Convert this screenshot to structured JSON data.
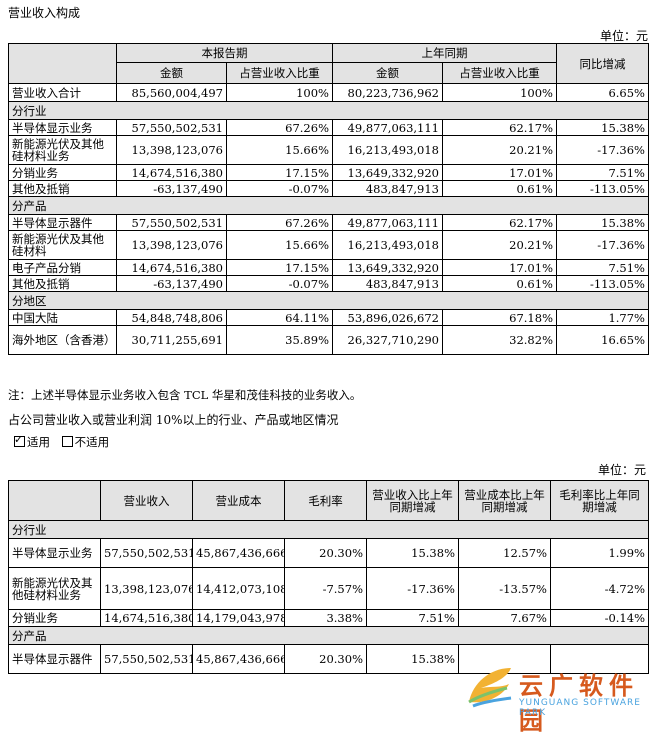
{
  "title": "营业收入构成",
  "unit_label": "单位：元",
  "table1": {
    "h_current": "本报告期",
    "h_prior": "上年同期",
    "h_change": "同比增减",
    "h_amount": "金额",
    "h_ratio": "占营业收入比重",
    "total": {
      "label": "营业收入合计",
      "amt": "85,560,004,497",
      "ratio": "100%",
      "pamt": "80,223,736,962",
      "pratio": "100%",
      "chg": "6.65%"
    },
    "sec_industry": "分行业",
    "industry": [
      {
        "label": "半导体显示业务",
        "amt": "57,550,502,531",
        "ratio": "67.26%",
        "pamt": "49,877,063,111",
        "pratio": "62.17%",
        "chg": "15.38%"
      },
      {
        "label": "新能源光伏及其他硅材料业务",
        "amt": "13,398,123,076",
        "ratio": "15.66%",
        "pamt": "16,213,493,018",
        "pratio": "20.21%",
        "chg": "-17.36%"
      },
      {
        "label": "分销业务",
        "amt": "14,674,516,380",
        "ratio": "17.15%",
        "pamt": "13,649,332,920",
        "pratio": "17.01%",
        "chg": "7.51%"
      },
      {
        "label": "其他及抵销",
        "amt": "-63,137,490",
        "ratio": "-0.07%",
        "pamt": "483,847,913",
        "pratio": "0.61%",
        "chg": "-113.05%"
      }
    ],
    "sec_product": "分产品",
    "product": [
      {
        "label": "半导体显示器件",
        "amt": "57,550,502,531",
        "ratio": "67.26%",
        "pamt": "49,877,063,111",
        "pratio": "62.17%",
        "chg": "15.38%"
      },
      {
        "label": "新能源光伏及其他硅材料",
        "amt": "13,398,123,076",
        "ratio": "15.66%",
        "pamt": "16,213,493,018",
        "pratio": "20.21%",
        "chg": "-17.36%"
      },
      {
        "label": "电子产品分销",
        "amt": "14,674,516,380",
        "ratio": "17.15%",
        "pamt": "13,649,332,920",
        "pratio": "17.01%",
        "chg": "7.51%"
      },
      {
        "label": "其他及抵销",
        "amt": "-63,137,490",
        "ratio": "-0.07%",
        "pamt": "483,847,913",
        "pratio": "0.61%",
        "chg": "-113.05%"
      }
    ],
    "sec_region": "分地区",
    "region": [
      {
        "label": "中国大陆",
        "amt": "54,848,748,806",
        "ratio": "64.11%",
        "pamt": "53,896,026,672",
        "pratio": "67.18%",
        "chg": "1.77%"
      },
      {
        "label": "海外地区（含香港）",
        "amt": "30,711,255,691",
        "ratio": "35.89%",
        "pamt": "26,327,710,290",
        "pratio": "32.82%",
        "chg": "16.65%"
      }
    ]
  },
  "note": "注：上述半导体显示业务收入包含 TCL 华星和茂佳科技的业务收入。",
  "subtitle": "占公司营业收入或营业利润 10%以上的行业、产品或地区情况",
  "checkbox_applicable": "适用",
  "checkbox_not_applicable": "不适用",
  "table2": {
    "h_revenue": "营业收入",
    "h_cost": "营业成本",
    "h_margin": "毛利率",
    "h_rev_chg": "营业收入比上年同期增减",
    "h_cost_chg": "营业成本比上年同期增减",
    "h_margin_chg": "毛利率比上年同期增减",
    "sec_industry": "分行业",
    "industry": [
      {
        "label": "半导体显示业务",
        "rev": "57,550,502,531",
        "cost": "45,867,436,666",
        "margin": "20.30%",
        "rchg": "15.38%",
        "cchg": "12.57%",
        "mchg": "1.99%"
      },
      {
        "label": "新能源光伏及其他硅材料业务",
        "rev": "13,398,123,076",
        "cost": "14,412,073,108",
        "margin": "-7.57%",
        "rchg": "-17.36%",
        "cchg": "-13.57%",
        "mchg": "-4.72%"
      },
      {
        "label": "分销业务",
        "rev": "14,674,516,380",
        "cost": "14,179,043,978",
        "margin": "3.38%",
        "rchg": "7.51%",
        "cchg": "7.67%",
        "mchg": "-0.14%"
      }
    ],
    "sec_product": "分产品",
    "product": [
      {
        "label": "半导体显示器件",
        "rev": "57,550,502,531",
        "cost": "45,867,436,666",
        "margin": "20.30%",
        "rchg": "15.38%",
        "cchg": "",
        "mchg": ""
      }
    ]
  },
  "watermark": {
    "cn": "云广软件园",
    "en": "YUNGUANG SOFTWARE PARK"
  }
}
